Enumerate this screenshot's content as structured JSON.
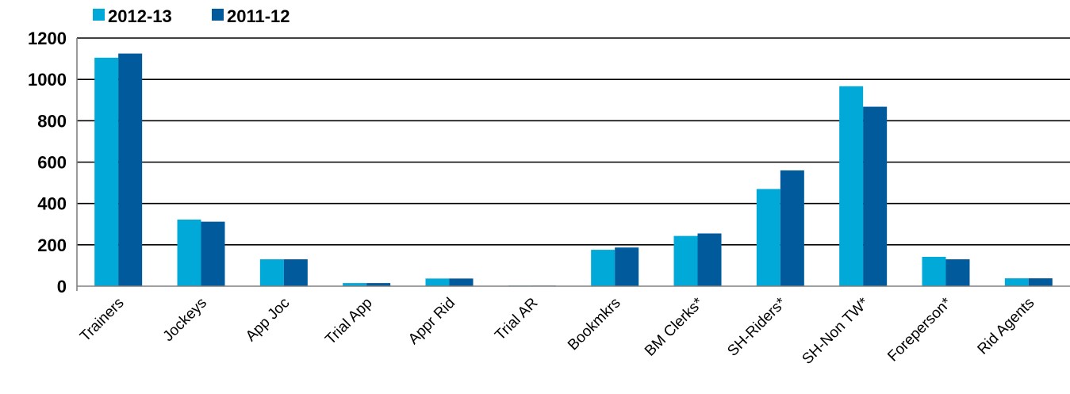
{
  "chart_data": {
    "type": "bar",
    "categories": [
      "Trainers",
      "Jockeys",
      "App Joc",
      "Trial App",
      "Appr Rid",
      "Trial AR",
      "Bookmkrs",
      "BM Clerks*",
      "SH-Riders*",
      "SH-Non TW*",
      "Foreperson*",
      "Rid Agents"
    ],
    "series": [
      {
        "name": "2012-13",
        "color": "#00a9d8",
        "values": [
          1105,
          322,
          130,
          15,
          37,
          3,
          176,
          243,
          470,
          967,
          142,
          38
        ]
      },
      {
        "name": "2011-12",
        "color": "#005a9c",
        "values": [
          1125,
          312,
          130,
          15,
          37,
          3,
          187,
          255,
          560,
          868,
          130,
          38
        ]
      }
    ],
    "yticks": [
      "0",
      "200",
      "400",
      "600",
      "800",
      "1000",
      "1200"
    ],
    "ylim": [
      0,
      1200
    ],
    "grid": true,
    "legend": "top-left",
    "title": "",
    "xlabel": "",
    "ylabel": ""
  }
}
